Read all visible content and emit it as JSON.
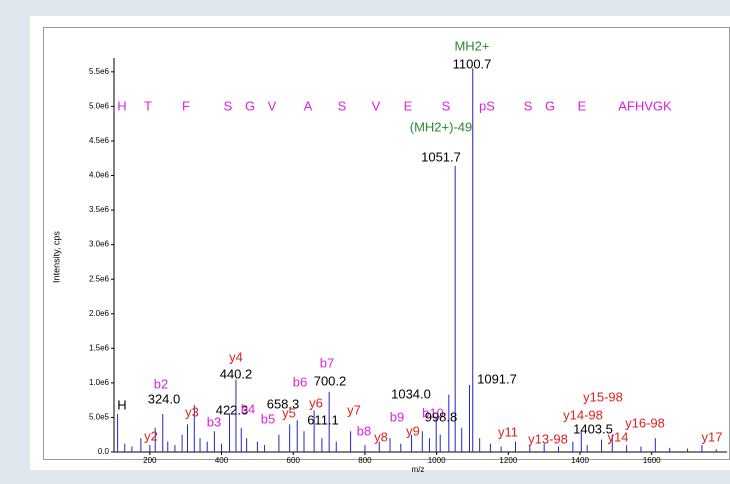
{
  "chart_data": {
    "type": "stick",
    "x_label": "m/z",
    "y_label": "Intensity, cps",
    "xlim": [
      100,
      1810
    ],
    "ylim": [
      0,
      5700000
    ],
    "xticks": [
      200,
      400,
      600,
      800,
      1000,
      1200,
      1400,
      1600
    ],
    "yticks": [
      {
        "value": 0,
        "label": "0.0"
      },
      {
        "value": 500000,
        "label": "5.0e5"
      },
      {
        "value": 1000000,
        "label": "1.0e6"
      },
      {
        "value": 1500000,
        "label": "1.5e6"
      },
      {
        "value": 2000000,
        "label": "2.0e6"
      },
      {
        "value": 2500000,
        "label": "2.5e6"
      },
      {
        "value": 3000000,
        "label": "3.0e6"
      },
      {
        "value": 3500000,
        "label": "3.5e6"
      },
      {
        "value": 4000000,
        "label": "4.0e6"
      },
      {
        "value": 4500000,
        "label": "4.5e6"
      },
      {
        "value": 5000000,
        "label": "5.0e6"
      },
      {
        "value": 5500000,
        "label": "5.5e6"
      }
    ],
    "sequence": [
      "H",
      "T",
      "F",
      "S",
      "G",
      "V",
      "A",
      "S",
      "V",
      "E",
      "S",
      "pS",
      "S",
      "G",
      "E",
      "AFHVGK"
    ],
    "sequence_color": "#e020e0",
    "series": [
      {
        "name": "Spectrum",
        "color": "#2424c8",
        "x": [
          110,
          130,
          150,
          175,
          200,
          215,
          236,
          250,
          270,
          290,
          305,
          324.0,
          340,
          360,
          380,
          400,
          422.3,
          440.2,
          455,
          470,
          500,
          520,
          560,
          590,
          611.1,
          630,
          658.3,
          680,
          700.2,
          720,
          760,
          800,
          840,
          870,
          900,
          930,
          960,
          980,
          998.8,
          1010,
          1034.0,
          1051.7,
          1070,
          1091.7,
          1100.7,
          1120,
          1150,
          1180,
          1220,
          1260,
          1300,
          1340,
          1380,
          1403.5,
          1420,
          1460,
          1490,
          1530,
          1570,
          1610,
          1650,
          1700,
          1740,
          1780
        ],
        "values": [
          550000,
          120000,
          80000,
          200000,
          100000,
          350000,
          550000,
          150000,
          100000,
          250000,
          400000,
          680000,
          200000,
          150000,
          300000,
          120000,
          560000,
          1050000,
          350000,
          200000,
          150000,
          100000,
          250000,
          400000,
          460000,
          300000,
          600000,
          200000,
          870000,
          150000,
          300000,
          100000,
          150000,
          200000,
          120000,
          250000,
          300000,
          200000,
          490000,
          250000,
          830000,
          4140000,
          350000,
          970000,
          5550000,
          200000,
          120000,
          80000,
          150000,
          100000,
          120000,
          80000,
          150000,
          310000,
          100000,
          180000,
          250000,
          100000,
          80000,
          200000,
          60000,
          50000,
          100000,
          40000
        ]
      }
    ],
    "annotations": [
      {
        "text": "MH2+",
        "color": "#2a8a2a"
      },
      {
        "text": "1100.7",
        "color": "#000000"
      },
      {
        "text": "(MH2+)-49",
        "color": "#2a8a2a"
      },
      {
        "text": "1051.7",
        "color": "#000000"
      },
      {
        "text": "y4",
        "color": "#e02020"
      },
      {
        "text": "440.2",
        "color": "#000000"
      },
      {
        "text": "b7",
        "color": "#e020e0"
      },
      {
        "text": "b6",
        "color": "#e020e0"
      },
      {
        "text": "700.2",
        "color": "#000000"
      },
      {
        "text": "b2",
        "color": "#e020e0"
      },
      {
        "text": "H",
        "color": "#000000"
      },
      {
        "text": "324.0",
        "color": "#000000"
      },
      {
        "text": "y3",
        "color": "#e02020"
      },
      {
        "text": "b3",
        "color": "#e020e0"
      },
      {
        "text": "422.3",
        "color": "#000000"
      },
      {
        "text": "b4",
        "color": "#e020e0"
      },
      {
        "text": "658.3",
        "color": "#000000"
      },
      {
        "text": "y5",
        "color": "#e02020"
      },
      {
        "text": "y6",
        "color": "#e02020"
      },
      {
        "text": "b5",
        "color": "#e020e0"
      },
      {
        "text": "611.1",
        "color": "#000000"
      },
      {
        "text": "y7",
        "color": "#e02020"
      },
      {
        "text": "1034.0",
        "color": "#000000"
      },
      {
        "text": "1091.7",
        "color": "#000000"
      },
      {
        "text": "b9",
        "color": "#e020e0"
      },
      {
        "text": "b10",
        "color": "#e020e0"
      },
      {
        "text": "998.8",
        "color": "#000000"
      },
      {
        "text": "b8",
        "color": "#e020e0"
      },
      {
        "text": "y8",
        "color": "#e02020"
      },
      {
        "text": "y9",
        "color": "#e02020"
      },
      {
        "text": "y15-98",
        "color": "#e02020"
      },
      {
        "text": "y14-98",
        "color": "#e02020"
      },
      {
        "text": "y16-98",
        "color": "#e02020"
      },
      {
        "text": "1403.5",
        "color": "#000000"
      },
      {
        "text": "y11",
        "color": "#e02020"
      },
      {
        "text": "y13-98",
        "color": "#e02020"
      },
      {
        "text": "y14",
        "color": "#e02020"
      },
      {
        "text": "y17",
        "color": "#e02020"
      },
      {
        "text": "y2",
        "color": "#e02020"
      }
    ]
  }
}
